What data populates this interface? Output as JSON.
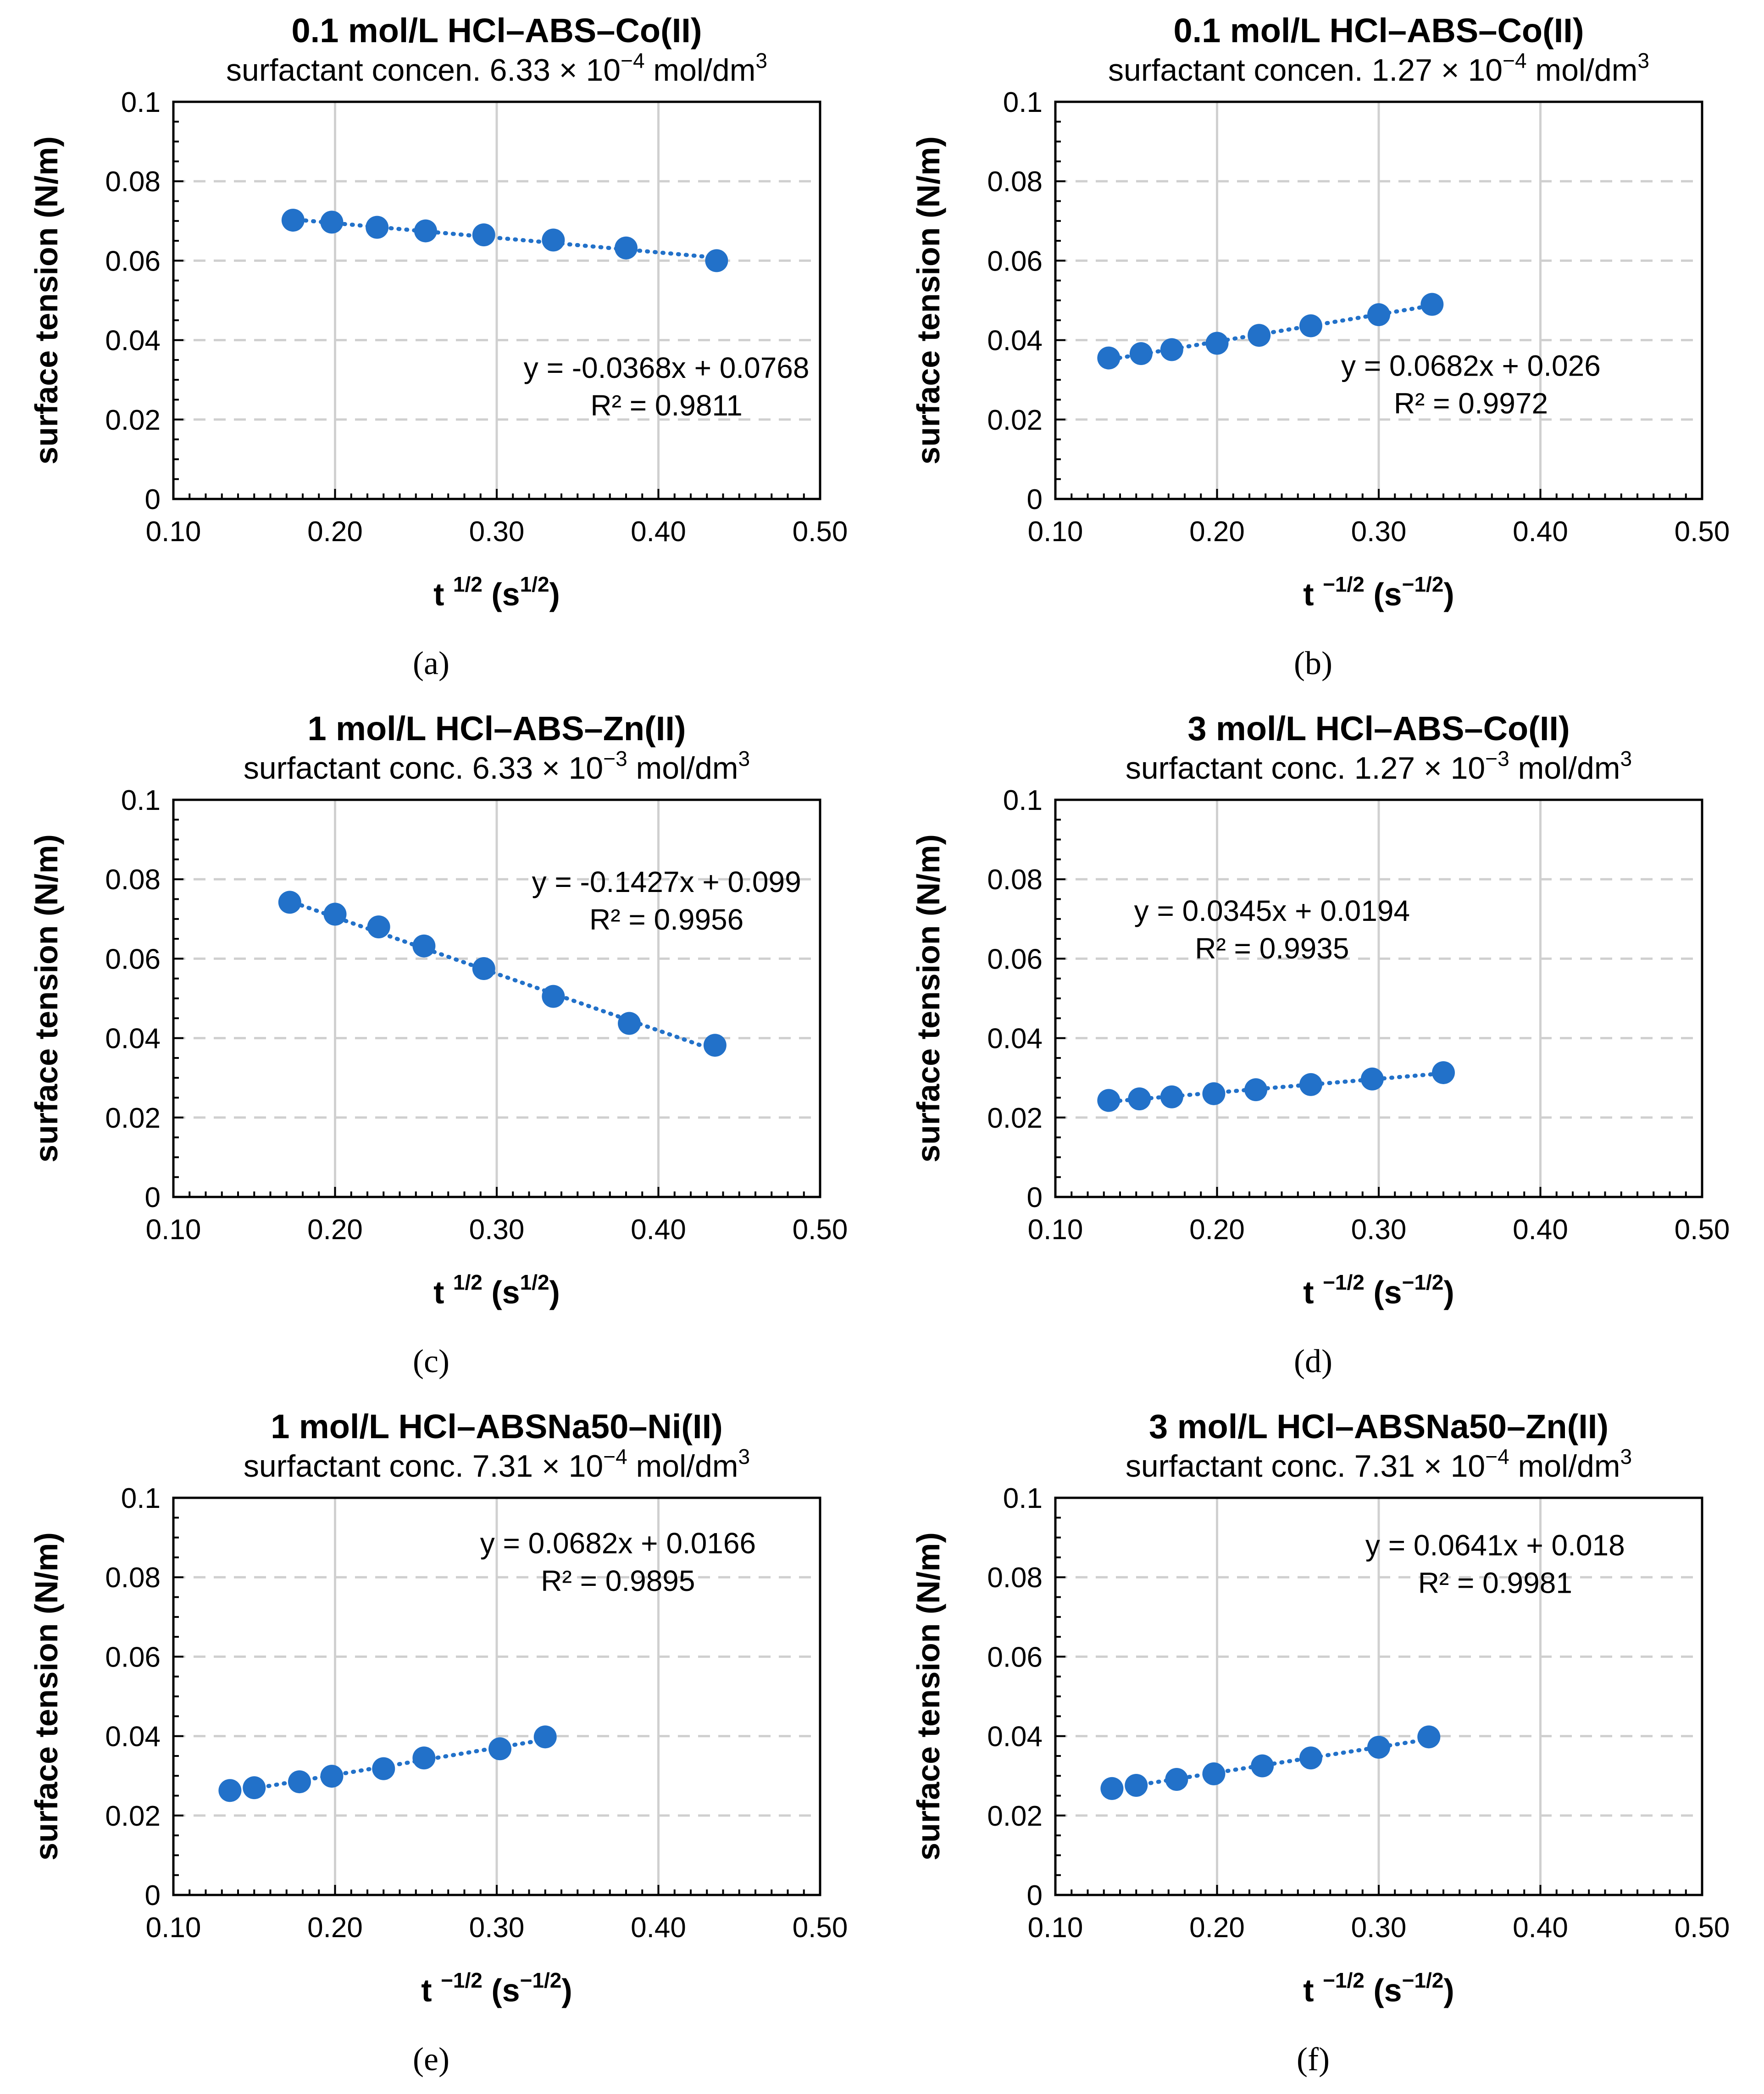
{
  "colors": {
    "marker": "#2271c9",
    "trendline": "#2271c9",
    "vgrid": "#d0d0d0",
    "hgrid": "#cfcfcf",
    "axis": "#000000"
  },
  "chart_data": [
    {
      "type": "scatter",
      "panel_label": "(a)",
      "title": "0.1 mol/L HCl–ABS–Co(II)",
      "subtitle": {
        "text": "surfactant concen. 6.33 × 10",
        "exponent": "−4",
        "unit": " mol/dm",
        "unit_exponent": "3"
      },
      "xlabel": {
        "base": "t ",
        "exponent": "1/2",
        "unit": " (s",
        "unit_exponent": "1/2",
        "close": ")"
      },
      "ylabel": "surface tension (N/m)",
      "xlim": [
        0.1,
        0.5
      ],
      "ylim": [
        0,
        0.1
      ],
      "xticks": [
        "0.10",
        "0.20",
        "0.30",
        "0.40",
        "0.50"
      ],
      "yticks": [
        "0",
        "0.02",
        "0.04",
        "0.06",
        "0.08",
        "0.1"
      ],
      "x": [
        0.174,
        0.198,
        0.226,
        0.256,
        0.292,
        0.335,
        0.38,
        0.436
      ],
      "y": [
        0.0702,
        0.0697,
        0.0684,
        0.0675,
        0.0665,
        0.0652,
        0.0632,
        0.06
      ],
      "trendline": {
        "slope": -0.0368,
        "intercept": 0.0768,
        "x_from": 0.172,
        "x_to": 0.436
      },
      "equation": "y = -0.0368x + 0.0768",
      "r2": "R² = 0.9811",
      "equation_position": [
        0.405,
        0.0305
      ]
    },
    {
      "type": "scatter",
      "panel_label": "(b)",
      "title": "0.1 mol/L HCl–ABS–Co(II)",
      "subtitle": {
        "text": "surfactant concen. 1.27 × 10",
        "exponent": "−4",
        "unit": " mol/dm",
        "unit_exponent": "3"
      },
      "xlabel": {
        "base": "t ",
        "exponent": "−1/2",
        "unit": " (s",
        "unit_exponent": "−1/2",
        "close": ")"
      },
      "ylabel": "surface tension (N/m)",
      "xlim": [
        0.1,
        0.5
      ],
      "ylim": [
        0,
        0.1
      ],
      "xticks": [
        "0.10",
        "0.20",
        "0.30",
        "0.40",
        "0.50"
      ],
      "yticks": [
        "0",
        "0.02",
        "0.04",
        "0.06",
        "0.08",
        "0.1"
      ],
      "x": [
        0.133,
        0.153,
        0.172,
        0.2,
        0.226,
        0.258,
        0.3,
        0.333
      ],
      "y": [
        0.0355,
        0.0366,
        0.0376,
        0.0392,
        0.0412,
        0.0436,
        0.0464,
        0.049
      ],
      "trendline": {
        "slope": 0.0682,
        "intercept": 0.026,
        "x_from": 0.13,
        "x_to": 0.333
      },
      "equation": "y = 0.0682x + 0.026",
      "r2": "R² = 0.9972",
      "equation_position": [
        0.357,
        0.031
      ]
    },
    {
      "type": "scatter",
      "panel_label": "(c)",
      "title": "1 mol/L HCl–ABS–Zn(II)",
      "subtitle": {
        "text": "surfactant conc. 6.33 × 10",
        "exponent": "−3",
        "unit": " mol/dm",
        "unit_exponent": "3"
      },
      "xlabel": {
        "base": "t ",
        "exponent": "1/2",
        "unit": " (s",
        "unit_exponent": "1/2",
        "close": ")"
      },
      "ylabel": "surface tension (N/m)",
      "xlim": [
        0.1,
        0.5
      ],
      "ylim": [
        0,
        0.1
      ],
      "xticks": [
        "0.10",
        "0.20",
        "0.30",
        "0.40",
        "0.50"
      ],
      "yticks": [
        "0",
        "0.02",
        "0.04",
        "0.06",
        "0.08",
        "0.1"
      ],
      "x": [
        0.172,
        0.2,
        0.227,
        0.255,
        0.292,
        0.335,
        0.382,
        0.435
      ],
      "y": [
        0.0742,
        0.0712,
        0.068,
        0.0632,
        0.0575,
        0.0505,
        0.0437,
        0.0382
      ],
      "trendline": {
        "slope": -0.1427,
        "intercept": 0.099,
        "x_from": 0.17,
        "x_to": 0.435
      },
      "equation": "y = -0.1427x + 0.099",
      "r2": "R² = 0.9956",
      "equation_position": [
        0.405,
        0.0768
      ]
    },
    {
      "type": "scatter",
      "panel_label": "(d)",
      "title": "3 mol/L HCl–ABS–Co(II)",
      "subtitle": {
        "text": "surfactant conc. 1.27 × 10",
        "exponent": "−3",
        "unit": " mol/dm",
        "unit_exponent": "3"
      },
      "xlabel": {
        "base": "t ",
        "exponent": "−1/2",
        "unit": " (s",
        "unit_exponent": "−1/2",
        "close": ")"
      },
      "ylabel": "surface tension (N/m)",
      "xlim": [
        0.1,
        0.5
      ],
      "ylim": [
        0,
        0.1
      ],
      "xticks": [
        "0.10",
        "0.20",
        "0.30",
        "0.40",
        "0.50"
      ],
      "yticks": [
        "0",
        "0.02",
        "0.04",
        "0.06",
        "0.08",
        "0.1"
      ],
      "x": [
        0.133,
        0.152,
        0.172,
        0.198,
        0.224,
        0.258,
        0.296,
        0.34
      ],
      "y": [
        0.0243,
        0.0247,
        0.0252,
        0.026,
        0.027,
        0.0283,
        0.0297,
        0.0313
      ],
      "trendline": {
        "slope": 0.0345,
        "intercept": 0.0194,
        "x_from": 0.13,
        "x_to": 0.34
      },
      "equation": "y = 0.0345x + 0.0194",
      "r2": "R² = 0.9935",
      "equation_position": [
        0.234,
        0.0695
      ]
    },
    {
      "type": "scatter",
      "panel_label": "(e)",
      "title": "1 mol/L HCl–ABSNa50–Ni(II)",
      "subtitle": {
        "text": "surfactant conc. 7.31 × 10",
        "exponent": "−4",
        "unit": " mol/dm",
        "unit_exponent": "3"
      },
      "xlabel": {
        "base": "t ",
        "exponent": "−1/2",
        "unit": " (s",
        "unit_exponent": "−1/2",
        "close": ")"
      },
      "ylabel": "surface tension (N/m)",
      "xlim": [
        0.1,
        0.5
      ],
      "ylim": [
        0,
        0.1
      ],
      "xticks": [
        "0.10",
        "0.20",
        "0.30",
        "0.40",
        "0.50"
      ],
      "yticks": [
        "0",
        "0.02",
        "0.04",
        "0.06",
        "0.08",
        "0.1"
      ],
      "x": [
        0.135,
        0.15,
        0.178,
        0.198,
        0.23,
        0.255,
        0.302,
        0.33
      ],
      "y": [
        0.0263,
        0.027,
        0.0285,
        0.0299,
        0.0318,
        0.0345,
        0.0368,
        0.0398
      ],
      "trendline": {
        "slope": 0.0682,
        "intercept": 0.0166,
        "x_from": 0.135,
        "x_to": 0.33
      },
      "equation": "y = 0.0682x + 0.0166",
      "r2": "R² = 0.9895",
      "equation_position": [
        0.375,
        0.086
      ]
    },
    {
      "type": "scatter",
      "panel_label": "(f)",
      "title": "3 mol/L HCl–ABSNa50–Zn(II)",
      "subtitle": {
        "text": "surfactant conc. 7.31 × 10",
        "exponent": "−4",
        "unit": " mol/dm",
        "unit_exponent": "3"
      },
      "xlabel": {
        "base": "t ",
        "exponent": "−1/2",
        "unit": " (s",
        "unit_exponent": "−1/2",
        "close": ")"
      },
      "ylabel": "surface tension (N/m)",
      "xlim": [
        0.1,
        0.5
      ],
      "ylim": [
        0,
        0.1
      ],
      "xticks": [
        "0.10",
        "0.20",
        "0.30",
        "0.40",
        "0.50"
      ],
      "yticks": [
        "0",
        "0.02",
        "0.04",
        "0.06",
        "0.08",
        "0.1"
      ],
      "x": [
        0.135,
        0.15,
        0.175,
        0.198,
        0.228,
        0.258,
        0.3,
        0.331
      ],
      "y": [
        0.0268,
        0.0276,
        0.0291,
        0.0305,
        0.0325,
        0.0345,
        0.0372,
        0.0398
      ],
      "trendline": {
        "slope": 0.0641,
        "intercept": 0.018,
        "x_from": 0.135,
        "x_to": 0.331
      },
      "equation": "y = 0.0641x + 0.018",
      "r2": "R² = 0.9981",
      "equation_position": [
        0.372,
        0.0855
      ]
    }
  ]
}
